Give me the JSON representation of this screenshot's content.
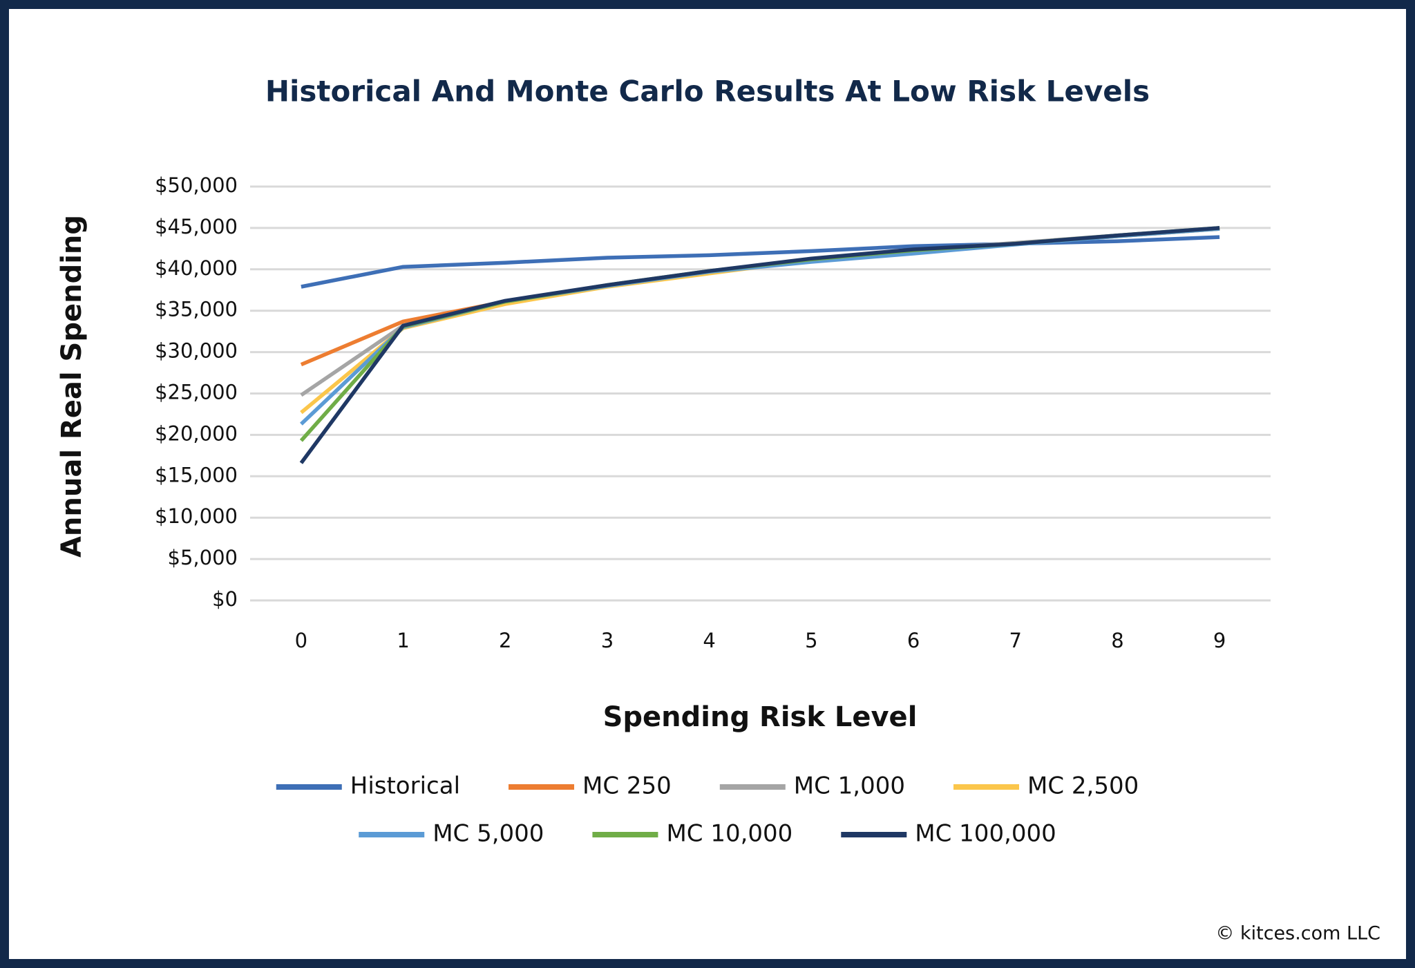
{
  "chart_data": {
    "type": "line",
    "title": "Historical And Monte Carlo Results At Low Risk Levels",
    "x_label": "Spending Risk Level",
    "y_label": "Annual Real Spending",
    "categories": [
      "0",
      "1",
      "2",
      "3",
      "4",
      "5",
      "6",
      "7",
      "8",
      "9"
    ],
    "ylim": [
      0,
      50000
    ],
    "yticks": [
      {
        "value": 0,
        "label": "$0"
      },
      {
        "value": 5000,
        "label": "$5,000"
      },
      {
        "value": 10000,
        "label": "$10,000"
      },
      {
        "value": 15000,
        "label": "$15,000"
      },
      {
        "value": 20000,
        "label": "$20,000"
      },
      {
        "value": 25000,
        "label": "$25,000"
      },
      {
        "value": 30000,
        "label": "$30,000"
      },
      {
        "value": 35000,
        "label": "$35,000"
      },
      {
        "value": 40000,
        "label": "$40,000"
      },
      {
        "value": 45000,
        "label": "$45,000"
      },
      {
        "value": 50000,
        "label": "$50,000"
      }
    ],
    "grid": true,
    "legend": "bottom",
    "series": [
      {
        "name": "Historical",
        "color": "#3e6fb6",
        "values": [
          37900,
          40300,
          40800,
          41400,
          41700,
          42200,
          42800,
          43100,
          43400,
          43900
        ]
      },
      {
        "name": "MC 250",
        "color": "#ed7d31",
        "values": [
          28500,
          33700,
          36100,
          38000,
          39700,
          41200,
          42300,
          43100,
          44000,
          44900
        ]
      },
      {
        "name": "MC 1,000",
        "color": "#a5a5a5",
        "values": [
          24800,
          33200,
          36100,
          38000,
          39700,
          41200,
          42300,
          43200,
          44100,
          44900
        ]
      },
      {
        "name": "MC 2,500",
        "color": "#fbc64b",
        "values": [
          22700,
          32900,
          35800,
          37900,
          39500,
          41100,
          42200,
          43100,
          44000,
          44900
        ]
      },
      {
        "name": "MC 5,000",
        "color": "#5b9bd5",
        "values": [
          21300,
          33000,
          36100,
          38000,
          39700,
          40900,
          41900,
          43000,
          44000,
          44900
        ]
      },
      {
        "name": "MC 10,000",
        "color": "#70ad47",
        "values": [
          19300,
          33100,
          36100,
          38100,
          39800,
          41200,
          42300,
          43100,
          44100,
          45000
        ]
      },
      {
        "name": "MC 100,000",
        "color": "#1f3864",
        "values": [
          16600,
          33200,
          36200,
          38100,
          39800,
          41300,
          42400,
          43100,
          44100,
          45000
        ]
      }
    ],
    "source_note": "© kitces.com LLC"
  }
}
